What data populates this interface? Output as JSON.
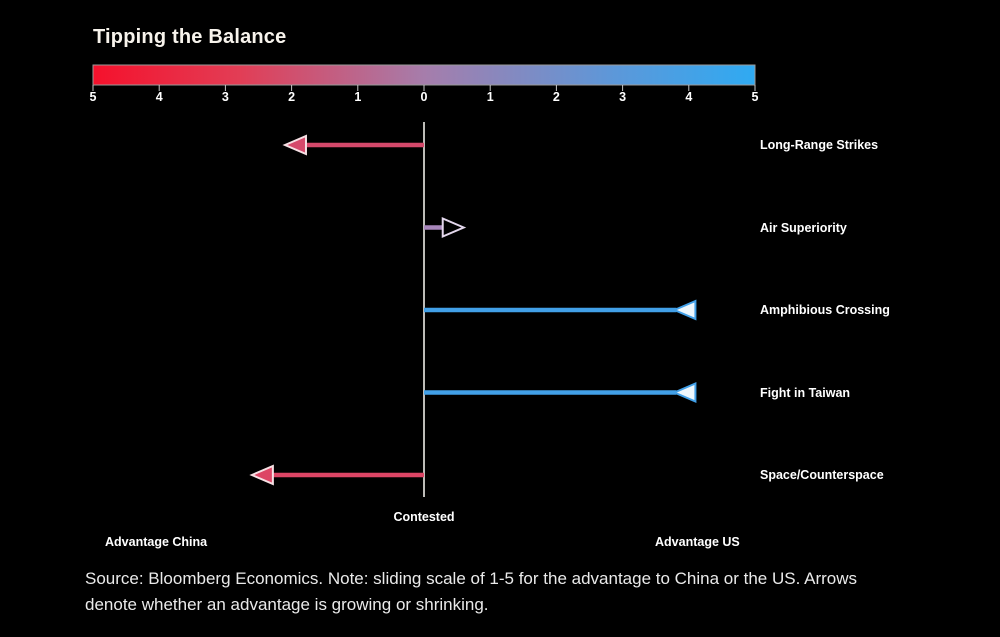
{
  "title": "Tipping the Balance",
  "chart_data": {
    "type": "diverging_arrow_chart",
    "scale": {
      "tick_labels": [
        "5",
        "4",
        "3",
        "2",
        "1",
        "0",
        "1",
        "2",
        "3",
        "4",
        "5"
      ],
      "range_per_side": [
        0,
        5
      ],
      "gradient_stops": [
        {
          "offset": 0.0,
          "color": "#f5112c"
        },
        {
          "offset": 0.22,
          "color": "#e23d55"
        },
        {
          "offset": 0.5,
          "color": "#a67dab"
        },
        {
          "offset": 0.78,
          "color": "#5e97d8"
        },
        {
          "offset": 1.0,
          "color": "#2faaf2"
        }
      ]
    },
    "axis_labels": {
      "center": "Contested",
      "left": "Advantage China",
      "right": "Advantage US"
    },
    "rows": [
      {
        "label": "Long-Range Strikes",
        "side": "China",
        "value": 2.1,
        "trend": "growing",
        "color": "#d5496b",
        "head_fill": "#d5496b",
        "head_stroke": "#f6e0e4"
      },
      {
        "label": "Air Superiority",
        "side": "US",
        "value": 0.6,
        "trend": "growing",
        "color": "#a886bb",
        "head_fill": "#000000",
        "head_stroke": "#e3d7ec"
      },
      {
        "label": "Amphibious Crossing",
        "side": "US",
        "value": 4.1,
        "trend": "shrinking",
        "color": "#42a0e8",
        "head_fill": "#eef7fd",
        "head_stroke": "#42a0e8"
      },
      {
        "label": "Fight in Taiwan",
        "side": "US",
        "value": 4.1,
        "trend": "shrinking",
        "color": "#42a0e8",
        "head_fill": "#eef7fd",
        "head_stroke": "#42a0e8"
      },
      {
        "label": "Space/Counterspace",
        "side": "China",
        "value": 2.6,
        "trend": "growing",
        "color": "#dd4565",
        "head_fill": "#dd4565",
        "head_stroke": "#f6e0e4"
      }
    ]
  },
  "source_note": "Source: Bloomberg Economics. Note: sliding scale of 1-5 for the advantage to China or the US. Arrows denote whether an advantage is growing or shrinking.",
  "colors": {
    "background": "#000000",
    "title_text": "#f7f3ec",
    "label_text": "#ffffff",
    "axis_line": "#edebe7",
    "tick": "#c9c9c9",
    "note_text": "#eaeaea",
    "bar_border": "#9a9a9a"
  }
}
